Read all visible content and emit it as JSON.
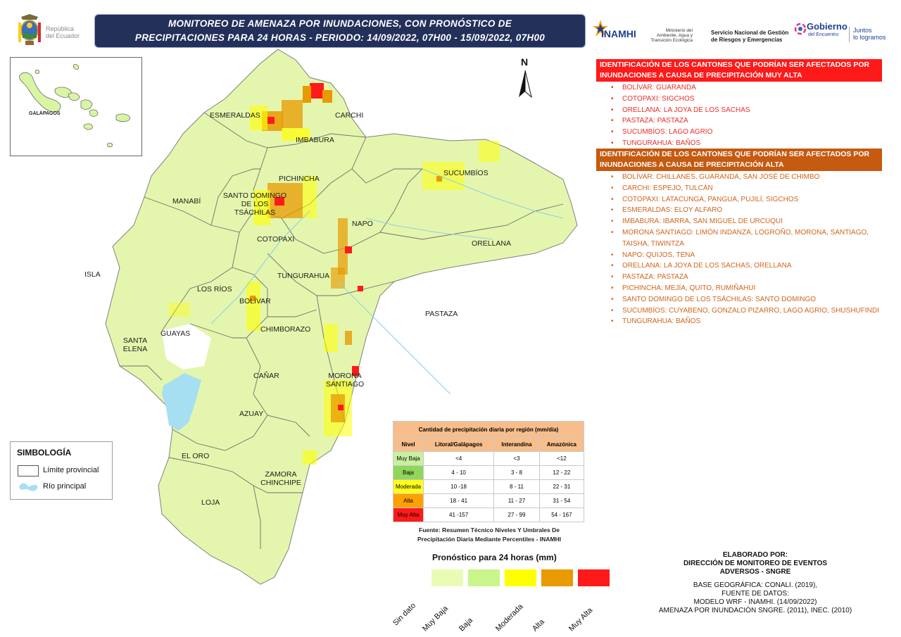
{
  "header": {
    "title_line1": "MONITOREO DE AMENAZA POR INUNDACIONES, CON PRONÓSTICO DE",
    "title_line2": "PRECIPITACIONES  PARA 24  HORAS - PERIODO: 14/09/2022, 07H00 - 15/09/2022, 07H00"
  },
  "logos": {
    "republica": "República",
    "del_ecuador": "del Ecuador",
    "inamhi": "INAMHI",
    "ministerio_l1": "Ministerio del",
    "ministerio_l2": "Ambiente, Agua y",
    "ministerio_l3": "Transición Ecológica",
    "sngre_l1": "Servicio Nacional de Gestión",
    "sngre_l2": "de Riesgos y Emergencias",
    "gobierno": "Gobierno",
    "del_encuentro": "del Encuentro",
    "juntos_l1": "Juntos",
    "juntos_l2": "lo logramos"
  },
  "north_arrow": "N",
  "very_high": {
    "header_l1": "IDENTIFICACIÓN DE LOS CANTONES QUE PODRÍAN SER AFECTADOS POR",
    "header_l2": "INUNDACIONES A CAUSA DE  PRECIPITACIÓN MUY ALTA",
    "color": "#ff1a1a",
    "items": [
      "BOLÍVAR: GUARANDA",
      "COTOPAXI: SIGCHOS",
      "ORELLANA: LA JOYA DE LOS SACHAS",
      "PASTAZA: PASTAZA",
      "SUCUMBÍOS: LAGO AGRIO",
      "TUNGURAHUA: BAÑOS"
    ]
  },
  "high": {
    "header_l1": "IDENTIFICACIÓN DE LOS CANTONES QUE PODRÍAN SER AFECTADOS POR",
    "header_l2": "INUNDACIONES A CAUSA DE  PRECIPITACIÓN  ALTA",
    "color": "#c55a11",
    "items": [
      "BOLÍVAR: CHILLANES, GUARANDA, SAN JOSÉ DE CHIMBO",
      "CARCHI: ESPEJO, TULCÁN",
      "COTOPAXI: LATACUNGA, PANGUA, PUJILÍ, SIGCHOS",
      "ESMERALDAS: ELOY ALFARO",
      "IMBABURA: IBARRA, SAN MIGUEL DE URCUQUI",
      "MORONA SANTIAGO: LIMÓN INDANZA, LOGROÑO, MORONA, SANTIAGO,",
      "TAISHA, TIWINTZA",
      "NAPO: QUIJOS, TENA",
      "ORELLANA: LA JOYA DE LOS SACHAS, ORELLANA",
      "PASTAZA: PASTAZA",
      "PICHINCHA: MEJÍA, QUITO, RUMIÑAHUI",
      "SANTO DOMINGO DE LOS TSÁCHILAS: SANTO DOMINGO",
      "SUCUMBÍOS: CUYABENO, GONZALO PIZARRO, LAGO AGRIO, SHUSHUFINDI",
      "TUNGURAHUA: BAÑOS"
    ]
  },
  "provinces": {
    "esmeraldas": "ESMERALDAS",
    "carchi": "CARCHI",
    "imbabura": "IMBABURA",
    "sucumbios": "SUCUMBÍOS",
    "pichincha": "PICHINCHA",
    "manabi": "MANABÍ",
    "santo_domingo_l1": "SANTO DOMINGO",
    "santo_domingo_l2": "DE LOS",
    "santo_domingo_l3": "TSÁCHILAS",
    "napo": "NAPO",
    "orellana": "ORELLANA",
    "cotopaxi": "COTOPAXI",
    "isla": "ISLA",
    "tungurahua": "TUNGURAHUA",
    "los_rios": "LOS RÍOS",
    "bolivar": "BOLÍVAR",
    "pastaza": "PASTAZA",
    "guayas": "GUAYAS",
    "chimborazo": "CHIMBORAZO",
    "santa_elena_l1": "SANTA",
    "santa_elena_l2": "ELENA",
    "canar": "CAÑAR",
    "morona_l1": "MORONA",
    "morona_l2": "SANTIAGO",
    "azuay": "AZUAY",
    "el_oro": "EL ORO",
    "zamora_l1": "ZAMORA",
    "zamora_l2": "CHINCHIPE",
    "loja": "LOJA",
    "galapagos": "GALÁPAGOS"
  },
  "symbology": {
    "title": "SIMBOLOGÍA",
    "limit": "Límite provincial",
    "river": "Río principal"
  },
  "threshold_table": {
    "title": "Cantidad de precipitación diaria por región (mm/día)",
    "columns": [
      "Nivel",
      "Litoral/Galápagos",
      "Interandina",
      "Amazónica"
    ],
    "rows": [
      {
        "level": "Muy Baja",
        "color": "#c8f0a0",
        "litoral": "<4",
        "interandina": "<3",
        "amazonica": "<12"
      },
      {
        "level": "Baja",
        "color": "#8fd65a",
        "litoral": "4 - 10",
        "interandina": "3 - 8",
        "amazonica": "12 - 22"
      },
      {
        "level": "Moderada",
        "color": "#ffff1a",
        "litoral": "10 -18",
        "interandina": "8 - 11",
        "amazonica": "22 - 31"
      },
      {
        "level": "Alta",
        "color": "#ffa000",
        "litoral": "18 - 41",
        "interandina": "11 - 27",
        "amazonica": "31 - 54"
      },
      {
        "level": "Muy Alta",
        "color": "#ff1a1a",
        "litoral": "41 -157",
        "interandina": "27 - 99",
        "amazonica": "54 - 167"
      }
    ],
    "source_l1": "Fuente: Resumen Técnico Niveles Y Umbrales De",
    "source_l2": "Precipitación Diaria Mediante Percentiles - INAMHI"
  },
  "forecast_legend": {
    "title": "Pronóstico para 24 horas (mm)",
    "classes": [
      {
        "label": "Sin dato",
        "color": "#ffffff"
      },
      {
        "label": "Muy Baja",
        "color": "#eafcb4"
      },
      {
        "label": "Baja",
        "color": "#c9f58a"
      },
      {
        "label": "Moderada",
        "color": "#ffff00"
      },
      {
        "label": "Alta",
        "color": "#e89a00"
      },
      {
        "label": "Muy Alta",
        "color": "#ff1a1a"
      }
    ]
  },
  "credits": {
    "elaborado_l1": "ELABORADO POR:",
    "elaborado_l2": "DIRECCIÓN DE MONITOREO DE EVENTOS",
    "elaborado_l3": "ADVERSOS - SNGRE",
    "base": "BASE GEOGRÁFICA: CONALI. (2019),",
    "fuente": "FUENTE DE DATOS:",
    "modelo": "MODELO WRF - INAMHI. (14/09/2022)",
    "amenaza": "AMENAZA POR INUNDACIÓN SNGRE. (2011), INEC. (2010)"
  }
}
